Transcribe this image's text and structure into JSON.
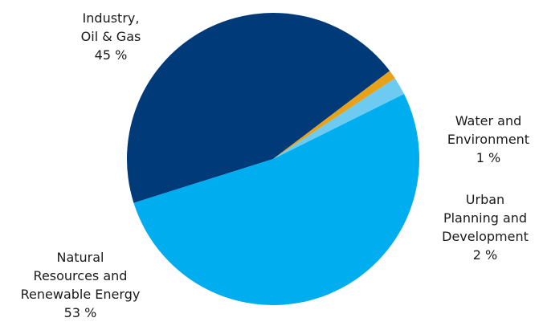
{
  "chart_data": {
    "type": "pie",
    "slices": [
      {
        "label": "Industry, Oil & Gas",
        "value": 45,
        "color": "#003a78"
      },
      {
        "label": "Water and Environment",
        "value": 1,
        "color": "#e8a21a"
      },
      {
        "label": "Urban Planning and Development",
        "value": 2,
        "color": "#6dcbf2"
      },
      {
        "label": "Natural Resources and Renewable Energy",
        "value": 53,
        "color": "#00aeef"
      }
    ],
    "labels": {
      "industry": {
        "line1": "Industry,",
        "line2": "Oil & Gas",
        "pct": "45 %"
      },
      "water": {
        "line1": "Water and",
        "line2": "Environment",
        "pct": "1 %"
      },
      "urban": {
        "line1": "Urban",
        "line2": "Planning and",
        "line3": "Development",
        "pct": "2  %"
      },
      "natural": {
        "line1": "Natural",
        "line2": "Resources and",
        "line3": "Renewable Energy",
        "pct": "53 %"
      }
    }
  }
}
